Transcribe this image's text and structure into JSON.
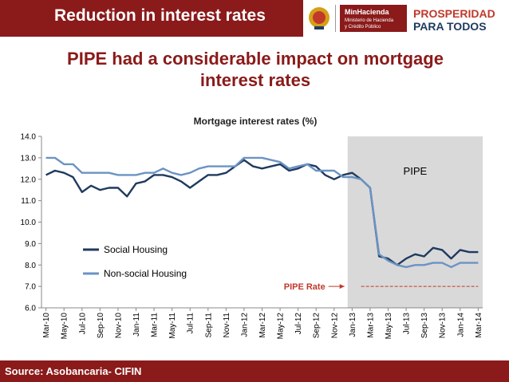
{
  "header": {
    "title": "Reduction in interest rates"
  },
  "logos": {
    "minhacienda_1": "MinHacienda",
    "minhacienda_2": "Ministerio de Hacienda",
    "minhacienda_3": "y Crédito Público",
    "prosperidad_1": "PROSPERIDAD",
    "prosperidad_2": "PARA TODOS"
  },
  "headline": {
    "line1": "PIPE had a considerable impact on mortgage",
    "line2": "interest rates"
  },
  "footer": {
    "source": "Source: Asobancaria- CIFIN"
  },
  "colors": {
    "brand": "#8b1a1a",
    "social": "#1f3a5f",
    "nonsocial": "#6b93c4",
    "shade": "#d9d9d9",
    "rate_line": "#c0392b"
  },
  "chart_data": {
    "type": "line",
    "title": "Mortgage interest rates (%)",
    "ylim": [
      6.0,
      14.0
    ],
    "yticks": [
      "6.0",
      "7.0",
      "8.0",
      "9.0",
      "10.0",
      "11.0",
      "12.0",
      "13.0",
      "14.0"
    ],
    "xticklabels": [
      "Mar-10",
      "May-10",
      "Jul-10",
      "Sep-10",
      "Nov-10",
      "Jan-11",
      "Mar-11",
      "May-11",
      "Jul-11",
      "Sep-11",
      "Nov-11",
      "Jan-12",
      "Mar-12",
      "May-12",
      "Jul-12",
      "Sep-12",
      "Nov-12",
      "Jan-13",
      "Mar-13",
      "May-13",
      "Jul-13",
      "Sep-13",
      "Nov-13",
      "Jan-14",
      "Mar-14"
    ],
    "x": [
      "Mar-10",
      "Apr-10",
      "May-10",
      "Jun-10",
      "Jul-10",
      "Aug-10",
      "Sep-10",
      "Oct-10",
      "Nov-10",
      "Dec-10",
      "Jan-11",
      "Feb-11",
      "Mar-11",
      "Apr-11",
      "May-11",
      "Jun-11",
      "Jul-11",
      "Aug-11",
      "Sep-11",
      "Oct-11",
      "Nov-11",
      "Dec-11",
      "Jan-12",
      "Feb-12",
      "Mar-12",
      "Apr-12",
      "May-12",
      "Jun-12",
      "Jul-12",
      "Aug-12",
      "Sep-12",
      "Oct-12",
      "Nov-12",
      "Dec-12",
      "Jan-13",
      "Feb-13",
      "Mar-13",
      "Apr-13",
      "May-13",
      "Jun-13",
      "Jul-13",
      "Aug-13",
      "Sep-13",
      "Oct-13",
      "Nov-13",
      "Dec-13",
      "Jan-14",
      "Feb-14",
      "Mar-14"
    ],
    "series": [
      {
        "name": "Social Housing",
        "values": [
          12.2,
          12.4,
          12.3,
          12.1,
          11.4,
          11.7,
          11.5,
          11.6,
          11.6,
          11.2,
          11.8,
          11.9,
          12.2,
          12.2,
          12.1,
          11.9,
          11.6,
          11.9,
          12.2,
          12.2,
          12.3,
          12.6,
          12.9,
          12.6,
          12.5,
          12.6,
          12.7,
          12.4,
          12.5,
          12.7,
          12.6,
          12.2,
          12.0,
          12.2,
          12.3,
          12.0,
          11.6,
          8.4,
          8.3,
          8.0,
          8.3,
          8.5,
          8.4,
          8.8,
          8.7,
          8.3,
          8.7,
          8.6,
          8.6
        ]
      },
      {
        "name": "Non-social Housing",
        "values": [
          13.0,
          13.0,
          12.7,
          12.7,
          12.3,
          12.3,
          12.3,
          12.3,
          12.2,
          12.2,
          12.2,
          12.3,
          12.3,
          12.5,
          12.3,
          12.2,
          12.3,
          12.5,
          12.6,
          12.6,
          12.6,
          12.6,
          13.0,
          13.0,
          13.0,
          12.9,
          12.8,
          12.5,
          12.6,
          12.7,
          12.4,
          12.4,
          12.4,
          12.1,
          12.1,
          12.0,
          11.6,
          8.5,
          8.2,
          8.0,
          7.9,
          8.0,
          8.0,
          8.1,
          8.1,
          7.9,
          8.1,
          8.1,
          8.1
        ]
      }
    ],
    "shaded_region": {
      "label": "PIPE",
      "from": "Jan-13",
      "to": "Mar-14"
    },
    "annotation": {
      "label": "PIPE Rate",
      "y": 7.0,
      "from": "Feb-13",
      "to": "Mar-14"
    },
    "legend": "center-left"
  }
}
